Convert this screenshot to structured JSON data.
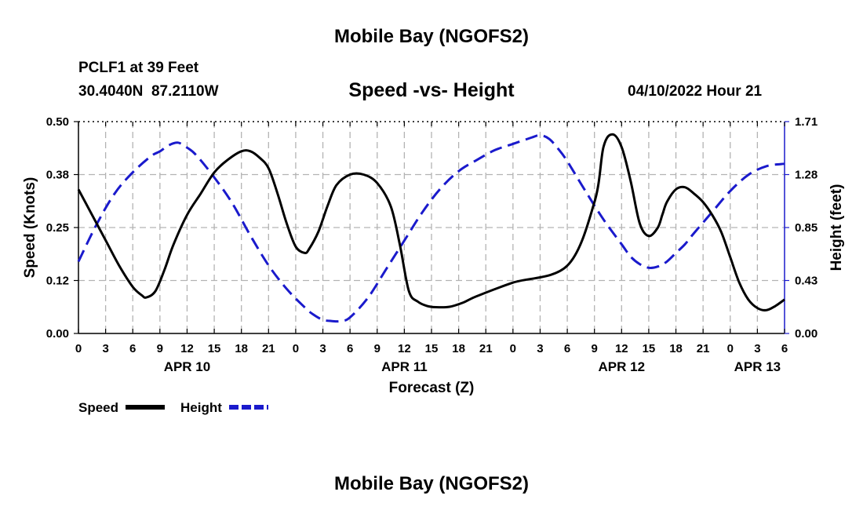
{
  "page": {
    "title_top": "Mobile Bay (NGOFS2)",
    "title_bottom": "Mobile Bay (NGOFS2)",
    "station": "PCLF1 at 39 Feet",
    "coords": "30.4040N  87.2110W",
    "datetime": "04/10/2022 Hour 21"
  },
  "chart_data": {
    "type": "line",
    "title": "Speed -vs- Height",
    "xlabel": "Forecast (Z)",
    "ylabel_left": "Speed (Knots)",
    "ylabel_right": "Height (feet)",
    "x_unit": "hours since APR 10 00Z",
    "xlim": [
      0,
      78
    ],
    "ylim_left": [
      0,
      0.5
    ],
    "ylim_right": [
      0,
      1.71
    ],
    "left_ticks": [
      "0.00",
      "0.12",
      "0.25",
      "0.38",
      "0.50"
    ],
    "right_ticks": [
      "0.00",
      "0.43",
      "0.85",
      "1.28",
      "1.71"
    ],
    "x_tick_labels": [
      "0",
      "3",
      "6",
      "9",
      "12",
      "15",
      "18",
      "21",
      "0",
      "3",
      "6",
      "9",
      "12",
      "15",
      "18",
      "21",
      "0",
      "3",
      "6",
      "9",
      "12",
      "15",
      "18",
      "21",
      "0",
      "3",
      "6"
    ],
    "date_labels": [
      {
        "label": "APR 10",
        "hour": 12
      },
      {
        "label": "APR 11",
        "hour": 36
      },
      {
        "label": "APR 12",
        "hour": 60
      },
      {
        "label": "APR 13",
        "hour": 75
      }
    ],
    "grid": true,
    "legend_position": "bottom-left",
    "series": [
      {
        "name": "Speed",
        "axis": "left",
        "color": "#000000",
        "dash": "solid",
        "x": [
          0,
          1.5,
          3,
          4.5,
          6,
          7,
          7.5,
          8.5,
          9.5,
          10.5,
          12,
          13.5,
          15,
          16.5,
          18,
          19,
          20,
          21,
          22,
          23,
          24,
          25,
          25.5,
          26.5,
          27.5,
          28.5,
          30,
          31.5,
          33,
          34.5,
          35.5,
          36.5,
          37.5,
          38.5,
          39.5,
          41,
          42.5,
          44,
          48,
          54,
          57,
          58,
          59,
          60,
          61,
          62,
          63,
          64,
          64.5,
          65,
          66,
          67,
          68,
          69,
          70,
          71,
          72,
          73,
          74,
          75,
          76,
          77,
          78
        ],
        "values": [
          0.34,
          0.28,
          0.22,
          0.16,
          0.11,
          0.09,
          0.085,
          0.1,
          0.15,
          0.21,
          0.28,
          0.33,
          0.38,
          0.41,
          0.43,
          0.43,
          0.415,
          0.39,
          0.33,
          0.26,
          0.205,
          0.19,
          0.2,
          0.24,
          0.3,
          0.35,
          0.375,
          0.375,
          0.355,
          0.3,
          0.21,
          0.1,
          0.075,
          0.065,
          0.062,
          0.063,
          0.073,
          0.088,
          0.12,
          0.16,
          0.31,
          0.44,
          0.47,
          0.44,
          0.36,
          0.26,
          0.23,
          0.25,
          0.28,
          0.31,
          0.34,
          0.345,
          0.33,
          0.31,
          0.28,
          0.24,
          0.18,
          0.12,
          0.08,
          0.06,
          0.055,
          0.065,
          0.08
        ]
      },
      {
        "name": "Height",
        "axis": "right",
        "color": "#1a1acc",
        "dash": "dashed",
        "x": [
          0,
          2,
          4,
          6,
          8,
          9,
          10,
          11,
          12,
          13,
          15,
          17,
          19,
          21,
          23,
          25,
          26,
          27,
          28,
          29,
          30,
          32,
          34,
          36,
          38,
          40,
          42,
          44,
          46,
          48,
          50,
          51,
          52,
          53,
          54,
          56,
          58,
          60,
          61,
          62,
          63,
          64,
          65,
          66,
          67,
          68,
          70,
          72,
          74,
          76,
          78
        ],
        "values": [
          0.58,
          0.88,
          1.13,
          1.3,
          1.43,
          1.47,
          1.52,
          1.54,
          1.5,
          1.44,
          1.26,
          1.05,
          0.79,
          0.55,
          0.36,
          0.21,
          0.15,
          0.11,
          0.1,
          0.1,
          0.13,
          0.29,
          0.52,
          0.75,
          0.98,
          1.17,
          1.31,
          1.4,
          1.48,
          1.53,
          1.58,
          1.6,
          1.57,
          1.49,
          1.39,
          1.15,
          0.92,
          0.72,
          0.62,
          0.56,
          0.53,
          0.54,
          0.58,
          0.65,
          0.72,
          0.81,
          0.98,
          1.15,
          1.28,
          1.35,
          1.37
        ]
      }
    ]
  }
}
